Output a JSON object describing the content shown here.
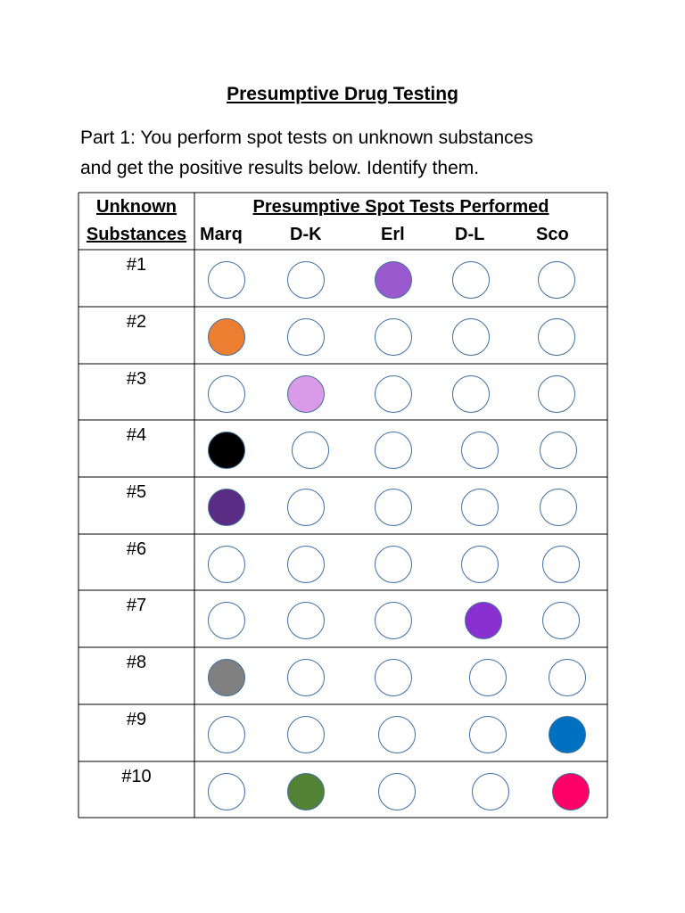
{
  "title": "Presumptive Drug Testing",
  "intro": {
    "line1": "Part 1:  You perform spot tests on unknown substances",
    "line2": "and get the positive results below.  Identify them."
  },
  "table": {
    "header_unknown_line1": "Unknown",
    "header_unknown_line2": "Substances",
    "header_tests": "Presumptive Spot Tests Performed",
    "test_columns": [
      "Marq",
      "D-K",
      "Erl",
      "D-L",
      "Sco"
    ],
    "rows": [
      {
        "label": "#1",
        "results": [
          null,
          null,
          "#9b59d0",
          null,
          null
        ]
      },
      {
        "label": "#2",
        "results": [
          "#ed7d31",
          null,
          null,
          null,
          null
        ]
      },
      {
        "label": "#3",
        "results": [
          null,
          "#d99ae8",
          null,
          null,
          null
        ]
      },
      {
        "label": "#4",
        "results": [
          "#000000",
          null,
          null,
          null,
          null
        ]
      },
      {
        "label": "#5",
        "results": [
          "#5b2c83",
          null,
          null,
          null,
          null
        ]
      },
      {
        "label": "#6",
        "results": [
          null,
          null,
          null,
          null,
          null
        ]
      },
      {
        "label": "#7",
        "results": [
          null,
          null,
          null,
          "#8a2fd0",
          null
        ]
      },
      {
        "label": "#8",
        "results": [
          "#808080",
          null,
          null,
          null,
          null
        ]
      },
      {
        "label": "#9",
        "results": [
          null,
          null,
          null,
          null,
          "#0070c0"
        ]
      },
      {
        "label": "#10",
        "results": [
          null,
          "#548235",
          null,
          null,
          "#ff0066"
        ]
      }
    ]
  }
}
